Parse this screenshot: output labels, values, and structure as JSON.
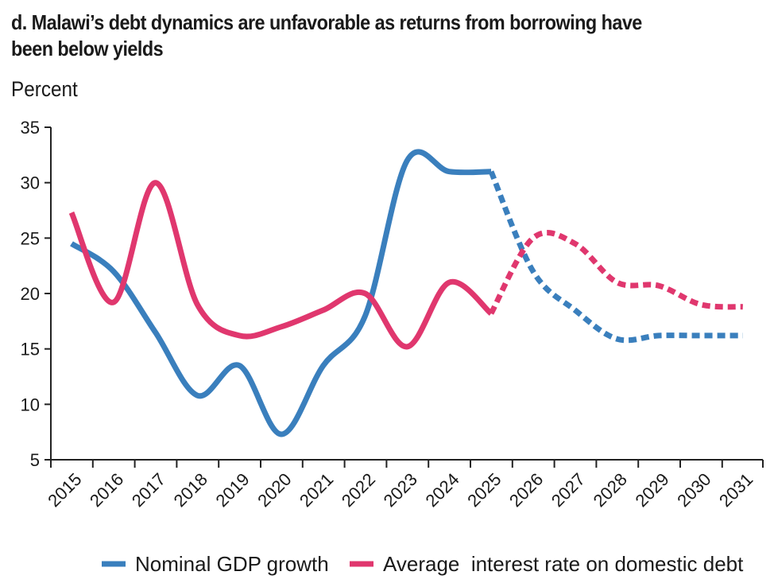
{
  "chart_data": {
    "type": "line",
    "title": "d. Malawi’s debt dynamics are unfavorable as returns from borrowing have been below yields",
    "ylabel": "Percent",
    "xlabel": "",
    "ylim": [
      5,
      35
    ],
    "yticks": [
      5,
      10,
      15,
      20,
      25,
      30,
      35
    ],
    "categories": [
      "2015",
      "2016",
      "2017",
      "2018",
      "2019",
      "2020",
      "2021",
      "2022",
      "2023",
      "2024",
      "2025",
      "2026",
      "2027",
      "2028",
      "2029",
      "2030",
      "2031"
    ],
    "projection_start": "2025",
    "grid": false,
    "legend_position": "bottom",
    "series": [
      {
        "name": "Nominal GDP growth",
        "color": "#3a7fbd",
        "values": [
          24.5,
          22.0,
          16.5,
          10.8,
          13.5,
          7.3,
          13.5,
          18.0,
          32.0,
          31.0,
          31.0,
          22.0,
          18.5,
          15.9,
          16.2,
          16.2,
          16.2
        ]
      },
      {
        "name": "Average  interest rate on domestic debt",
        "color": "#e0376e",
        "values": [
          27.3,
          19.2,
          30.0,
          19.0,
          16.2,
          17.0,
          18.5,
          20.0,
          15.2,
          21.0,
          18.2,
          25.0,
          24.5,
          21.0,
          20.7,
          19.0,
          18.8
        ]
      }
    ]
  }
}
